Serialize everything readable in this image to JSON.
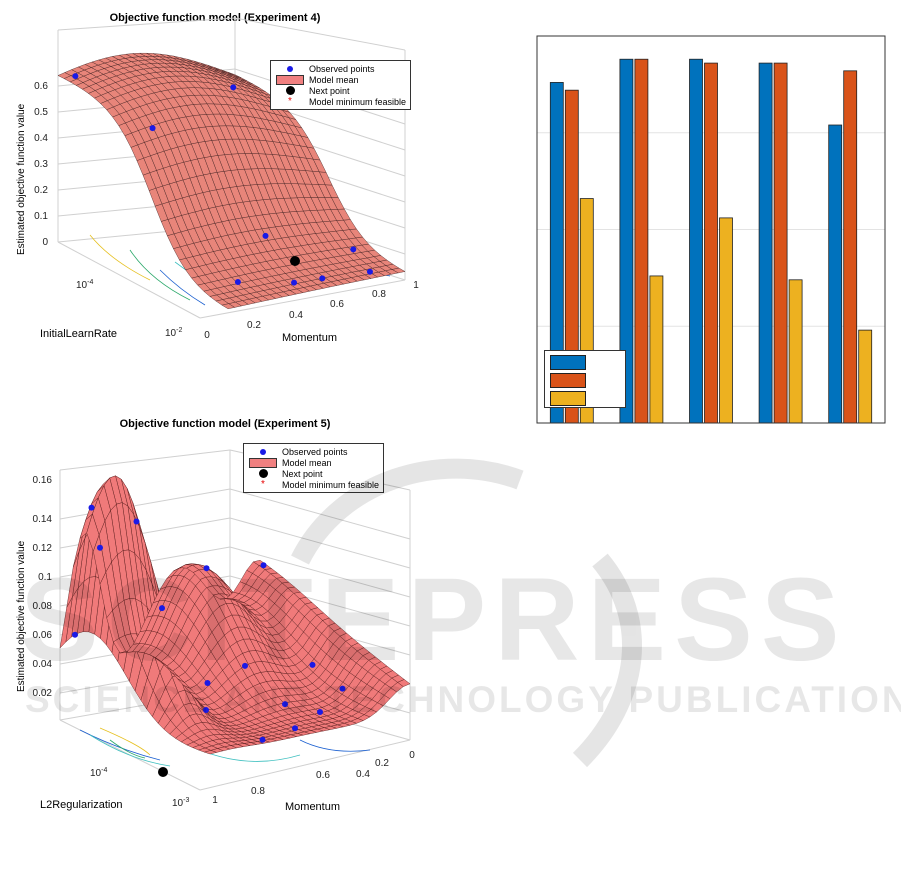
{
  "chart_data": [
    {
      "type": "surface",
      "title": "Objective function model (Experiment 4)",
      "zlabel": "Estimated objective function value",
      "xlabel": "Momentum",
      "ylabel": "InitialLearnRate",
      "z_ticks": [
        "0",
        "0.1",
        "0.2",
        "0.3",
        "0.4",
        "0.5",
        "0.6"
      ],
      "x_ticks": [
        "0",
        "0.2",
        "0.4",
        "0.6",
        "0.8",
        "1"
      ],
      "y_ticks": [
        "10",
        "10"
      ],
      "y_tick_exponents": [
        "-4",
        "-2"
      ],
      "legend": [
        "Observed points",
        "Model mean",
        "Next point",
        "Model minimum feasible"
      ]
    },
    {
      "type": "bar",
      "series": [
        {
          "values": [
            0.88,
            0.94,
            0.94,
            0.93,
            0.77
          ],
          "color": "#0072bd"
        },
        {
          "values": [
            0.86,
            0.94,
            0.93,
            0.93,
            0.91
          ],
          "color": "#d95319"
        },
        {
          "values": [
            0.58,
            0.38,
            0.53,
            0.37,
            0.24
          ],
          "color": "#edb120"
        }
      ],
      "ylim": [
        0,
        1
      ],
      "grid": true,
      "legend_placement": "bottom-left"
    },
    {
      "type": "surface",
      "title": "Objective function model (Experiment 5)",
      "zlabel": "Estimated objective function value",
      "xlabel": "Momentum",
      "ylabel": "L2Regularization",
      "z_ticks": [
        "0.02",
        "0.04",
        "0.06",
        "0.08",
        "0.1",
        "0.12",
        "0.14",
        "0.16"
      ],
      "x_ticks": [
        "1",
        "0.8",
        "0.6",
        "0.4",
        "0.2",
        "0"
      ],
      "y_ticks": [
        "10",
        "10"
      ],
      "y_tick_exponents": [
        "-4",
        "-3"
      ],
      "legend": [
        "Observed points",
        "Model mean",
        "Next point",
        "Model minimum feasible"
      ]
    }
  ],
  "watermark": {
    "main": "SCITEPRESS",
    "sub": "SCIENCE AND TECHNOLOGY PUBLICATIONS"
  }
}
